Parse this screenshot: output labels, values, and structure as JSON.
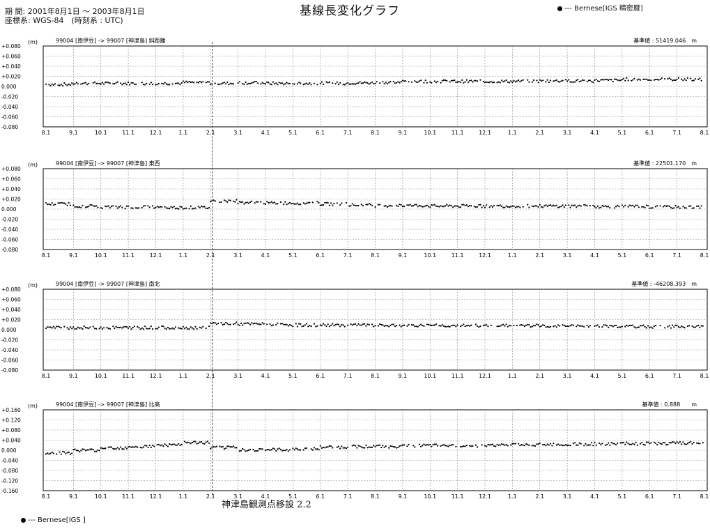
{
  "header": {
    "period": "期 間: 2001年8月1日 ～ 2003年8月1日",
    "coord_system": "座標系: WGS-84　(時刻系 : UTC)",
    "title": "基線長変化グラフ"
  },
  "legend": {
    "top": "--- Bernese[IGS 精密暦]",
    "bottom": "--- Bernese[IGS ]"
  },
  "caption": "神津島観測点移設 2.2",
  "chart_data": [
    {
      "type": "scatter",
      "title": "99004 [南伊豆] -> 99007 [神津島]  斜距離",
      "unit": "(m)",
      "reference": "基準値 : 51419.046　m",
      "ylim": [
        -0.08,
        0.08
      ],
      "yticks": [
        "+0.080",
        "+0.060",
        "+0.040",
        "+0.020",
        "0.000",
        "-0.020",
        "-0.040",
        "-0.060",
        "-0.080"
      ],
      "xticks": [
        "8.1",
        "9.1",
        "10.1",
        "11.1",
        "12.1",
        "1.1",
        "2.1",
        "3.1",
        "4.1",
        "5.1",
        "6.1",
        "7.1",
        "8.1",
        "9.1",
        "10.1",
        "11.1",
        "12.1",
        "1.1",
        "2.1",
        "3.1",
        "4.1",
        "5.1",
        "6.1",
        "7.1",
        "8.1"
      ],
      "series": [
        {
          "values": [
            0.004,
            0.006,
            0.006,
            0.006,
            0.006,
            0.008,
            0.006,
            0.007,
            0.006,
            0.006,
            0.006,
            0.007,
            0.008,
            0.01,
            0.01,
            0.01,
            0.01,
            0.01,
            0.011,
            0.011,
            0.012,
            0.014,
            0.014,
            0.014
          ]
        }
      ],
      "grid": true
    },
    {
      "type": "scatter",
      "title": "99004 [南伊豆] -> 99007 [神津島]  東西",
      "unit": "(m)",
      "reference": "基準値 : 22501.170　m",
      "ylim": [
        -0.08,
        0.08
      ],
      "yticks": [
        "+0.080",
        "+0.060",
        "+0.040",
        "+0.020",
        "0.000",
        "-0.020",
        "-0.040",
        "-0.060",
        "-0.080"
      ],
      "xticks": [
        "8.1",
        "9.1",
        "10.1",
        "11.1",
        "12.1",
        "1.1",
        "2.1",
        "3.1",
        "4.1",
        "5.1",
        "6.1",
        "7.1",
        "8.1",
        "9.1",
        "10.1",
        "11.1",
        "12.1",
        "1.1",
        "2.1",
        "3.1",
        "4.1",
        "5.1",
        "6.1",
        "7.1",
        "8.1"
      ],
      "series": [
        {
          "values": [
            0.01,
            0.006,
            0.004,
            0.004,
            0.003,
            0.003,
            0.016,
            0.013,
            0.012,
            0.012,
            0.01,
            0.008,
            0.007,
            0.007,
            0.006,
            0.006,
            0.006,
            0.006,
            0.006,
            0.006,
            0.005,
            0.005,
            0.004,
            0.004
          ]
        }
      ],
      "grid": true
    },
    {
      "type": "scatter",
      "title": "99004 [南伊豆] -> 99007 [神津島]  南北",
      "unit": "(m)",
      "reference": "基準値 : -46208.393　m",
      "ylim": [
        -0.08,
        0.08
      ],
      "yticks": [
        "+0.080",
        "+0.060",
        "+0.040",
        "+0.020",
        "0.000",
        "-0.020",
        "-0.040",
        "-0.060",
        "-0.080"
      ],
      "xticks": [
        "8.1",
        "9.1",
        "10.1",
        "11.1",
        "12.1",
        "1.1",
        "2.1",
        "3.1",
        "4.1",
        "5.1",
        "6.1",
        "7.1",
        "8.1",
        "9.1",
        "10.1",
        "11.1",
        "12.1",
        "1.1",
        "2.1",
        "3.1",
        "4.1",
        "5.1",
        "6.1",
        "7.1",
        "8.1"
      ],
      "series": [
        {
          "values": [
            0.004,
            0.004,
            0.004,
            0.004,
            0.004,
            0.004,
            0.012,
            0.011,
            0.01,
            0.009,
            0.009,
            0.009,
            0.008,
            0.008,
            0.008,
            0.008,
            0.008,
            0.008,
            0.007,
            0.007,
            0.007,
            0.006,
            0.006,
            0.006
          ]
        }
      ],
      "grid": true
    },
    {
      "type": "scatter",
      "title": "99004 [南伊豆] -> 99007 [神津島]  比高",
      "unit": "(m)",
      "reference": "基準値 : 0.888　　m",
      "ylim": [
        -0.16,
        0.16
      ],
      "yticks": [
        "+0.160",
        "+0.120",
        "+0.080",
        "+0.040",
        "0.000",
        "-0.040",
        "-0.080",
        "-0.120",
        "-0.160"
      ],
      "xticks": [
        "8.1",
        "9.1",
        "10.1",
        "11.1",
        "12.1",
        "1.1",
        "2.1",
        "3.1",
        "4.1",
        "5.1",
        "6.1",
        "7.1",
        "8.1",
        "9.1",
        "10.1",
        "11.1",
        "12.1",
        "1.1",
        "2.1",
        "3.1",
        "4.1",
        "5.1",
        "6.1",
        "7.1",
        "8.1"
      ],
      "series": [
        {
          "values": [
            -0.01,
            0.0,
            0.01,
            0.015,
            0.02,
            0.03,
            0.01,
            0.002,
            0.002,
            0.005,
            0.012,
            0.015,
            0.015,
            0.018,
            0.018,
            0.018,
            0.02,
            0.022,
            0.022,
            0.024,
            0.025,
            0.026,
            0.027,
            0.028
          ]
        }
      ],
      "grid": true
    }
  ]
}
